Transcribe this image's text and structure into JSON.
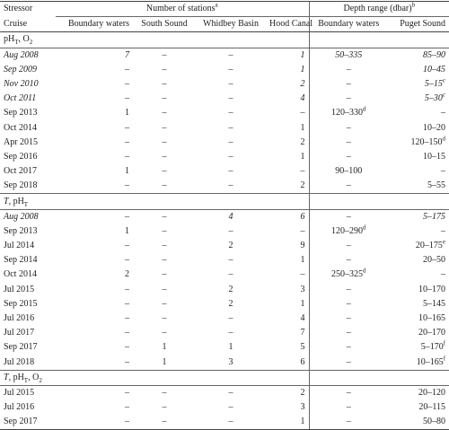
{
  "table": {
    "header": {
      "stressor": "Stressor",
      "cruise": "Cruise",
      "stations": {
        "text": "Number of stations",
        "sup": "a"
      },
      "depth": {
        "text": "Depth range (dbar)",
        "sup": "b"
      },
      "columns": [
        "Boundary waters",
        "South Sound",
        "Whidbey Basin",
        "Hood Canal",
        "Boundary waters",
        "Puget Sound"
      ]
    },
    "sections": [
      {
        "label": [
          {
            "text": "pH",
            "sub": "T"
          },
          {
            "text": ", O",
            "sub": "2"
          }
        ],
        "rows": [
          {
            "italic": true,
            "cells": [
              "Aug 2008",
              "7",
              "–",
              "–",
              "1",
              "50–335",
              "85–90"
            ]
          },
          {
            "italic": true,
            "cells": [
              "Sep 2009",
              "–",
              "–",
              "–",
              "1",
              "–",
              "10–45"
            ]
          },
          {
            "italic": true,
            "cells": [
              "Nov 2010",
              "–",
              "–",
              "–",
              "2",
              "–",
              {
                "text": "5–15",
                "sup": "c"
              }
            ]
          },
          {
            "italic": true,
            "cells": [
              "Oct 2011",
              "–",
              "–",
              "–",
              "4",
              "–",
              {
                "text": "5–30",
                "sup": "c"
              }
            ]
          },
          {
            "cells": [
              "Sep 2013",
              "1",
              "–",
              "–",
              "–",
              {
                "text": "120–330",
                "sup": "d"
              },
              "–"
            ]
          },
          {
            "cells": [
              "Oct 2014",
              "–",
              "–",
              "–",
              "1",
              "–",
              "10–20"
            ]
          },
          {
            "cells": [
              "Apr 2015",
              "–",
              "–",
              "–",
              "2",
              "–",
              {
                "text": "120–150",
                "sup": "d"
              }
            ]
          },
          {
            "cells": [
              "Sep 2016",
              "–",
              "–",
              "–",
              "1",
              "–",
              "10–15"
            ]
          },
          {
            "cells": [
              "Oct 2017",
              "1",
              "–",
              "–",
              "–",
              "90–100",
              "–"
            ]
          },
          {
            "cells": [
              "Sep 2018",
              "–",
              "–",
              "–",
              "2",
              "–",
              "5–55"
            ]
          }
        ]
      },
      {
        "label": [
          {
            "text": "T",
            "italic": true
          },
          {
            "text": ", pH",
            "sub": "T"
          }
        ],
        "rows": [
          {
            "italic": true,
            "cells": [
              "Aug 2008",
              "–",
              "–",
              "4",
              "6",
              "–",
              "5–175"
            ]
          },
          {
            "cells": [
              "Sep 2013",
              "1",
              "–",
              "–",
              "–",
              {
                "text": "120–290",
                "sup": "d"
              },
              "–"
            ]
          },
          {
            "cells": [
              "Jul 2014",
              "–",
              "–",
              "2",
              "9",
              "–",
              {
                "text": "20–175",
                "sup": "e"
              }
            ]
          },
          {
            "cells": [
              "Sep 2014",
              "–",
              "–",
              "–",
              "1",
              "–",
              "20–50"
            ]
          },
          {
            "cells": [
              "Oct 2014",
              "2",
              "–",
              "–",
              "–",
              {
                "text": "250–325",
                "sup": "d"
              },
              "–"
            ]
          },
          {
            "cells": [
              "Jul 2015",
              "–",
              "–",
              "2",
              "3",
              "–",
              "10–170"
            ]
          },
          {
            "cells": [
              "Sep 2015",
              "–",
              "–",
              "2",
              "1",
              "–",
              "5–145"
            ]
          },
          {
            "cells": [
              "Jul 2016",
              "–",
              "–",
              "–",
              "4",
              "–",
              "10–165"
            ]
          },
          {
            "cells": [
              "Jul 2017",
              "–",
              "–",
              "–",
              "7",
              "–",
              "20–170"
            ]
          },
          {
            "cells": [
              "Sep 2017",
              "–",
              "1",
              "1",
              "5",
              "–",
              {
                "text": "5–170",
                "sup": "f"
              }
            ]
          },
          {
            "cells": [
              "Jul 2018",
              "–",
              "1",
              "3",
              "6",
              "–",
              {
                "text": "10–165",
                "sup": "f"
              }
            ]
          }
        ]
      },
      {
        "label": [
          {
            "text": "T",
            "italic": true
          },
          {
            "text": ", pH",
            "sub": "T"
          },
          {
            "text": ", O",
            "sub": "2"
          }
        ],
        "rows": [
          {
            "cells": [
              "Jul 2015",
              "–",
              "–",
              "–",
              "2",
              "–",
              "20–120"
            ]
          },
          {
            "cells": [
              "Jul 2016",
              "–",
              "–",
              "–",
              "3",
              "–",
              "20–115"
            ]
          },
          {
            "cells": [
              "Sep 2017",
              "–",
              "–",
              "–",
              "1",
              "–",
              "50–80"
            ]
          }
        ]
      }
    ]
  }
}
